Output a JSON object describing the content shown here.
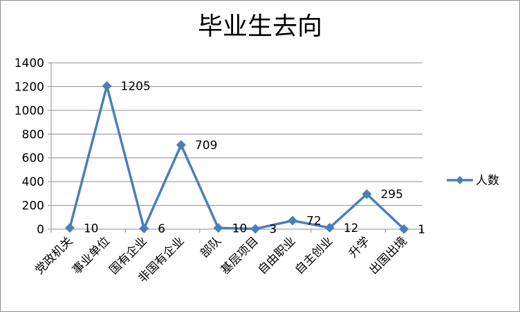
{
  "chart_data": {
    "type": "line",
    "title": "毕业生去向",
    "categories": [
      "党政机关",
      "事业单位",
      "国有企业",
      "非国有企业",
      "部队",
      "基层项目",
      "自由职业",
      "自主创业",
      "升学",
      "出国出境"
    ],
    "series": [
      {
        "name": "人数",
        "values": [
          10,
          1205,
          6,
          709,
          10,
          3,
          72,
          12,
          295,
          1
        ],
        "color": "#4a7ebb"
      }
    ],
    "ylim": [
      0,
      1400
    ],
    "yticks": [
      0,
      200,
      400,
      600,
      800,
      1000,
      1200,
      1400
    ],
    "grid": true,
    "legend": "right",
    "marker": "diamond"
  }
}
